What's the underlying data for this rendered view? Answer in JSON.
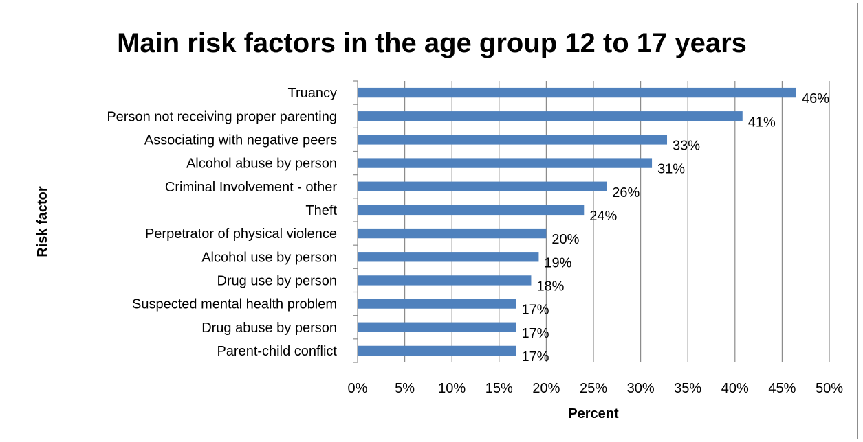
{
  "chart_data": {
    "type": "bar",
    "orientation": "horizontal",
    "title": "Main risk factors in the age group 12 to 17 years",
    "xlabel": "Percent",
    "ylabel": "Risk factor",
    "xlim": [
      0,
      50
    ],
    "x_ticks": [
      "0%",
      "5%",
      "10%",
      "15%",
      "20%",
      "25%",
      "30%",
      "35%",
      "40%",
      "45%",
      "50%"
    ],
    "x_tick_values": [
      0,
      5,
      10,
      15,
      20,
      25,
      30,
      35,
      40,
      45,
      50
    ],
    "grid": "vertical",
    "legend": "none",
    "bar_color": "#4f81bd",
    "categories": [
      "Truancy",
      "Person not receiving proper parenting",
      "Associating with negative peers",
      "Alcohol abuse by person",
      "Criminal Involvement - other",
      "Theft",
      "Perpetrator of physical violence",
      "Alcohol use by person",
      "Drug use by person",
      "Suspected mental health problem",
      "Drug abuse by person",
      "Parent-child conflict"
    ],
    "values": [
      46.5,
      40.8,
      32.8,
      31.2,
      26.4,
      24.0,
      20.0,
      19.2,
      18.4,
      16.8,
      16.8,
      16.8
    ],
    "data_labels": [
      "46%",
      "41%",
      "33%",
      "31%",
      "26%",
      "24%",
      "20%",
      "19%",
      "18%",
      "17%",
      "17%",
      "17%"
    ]
  }
}
